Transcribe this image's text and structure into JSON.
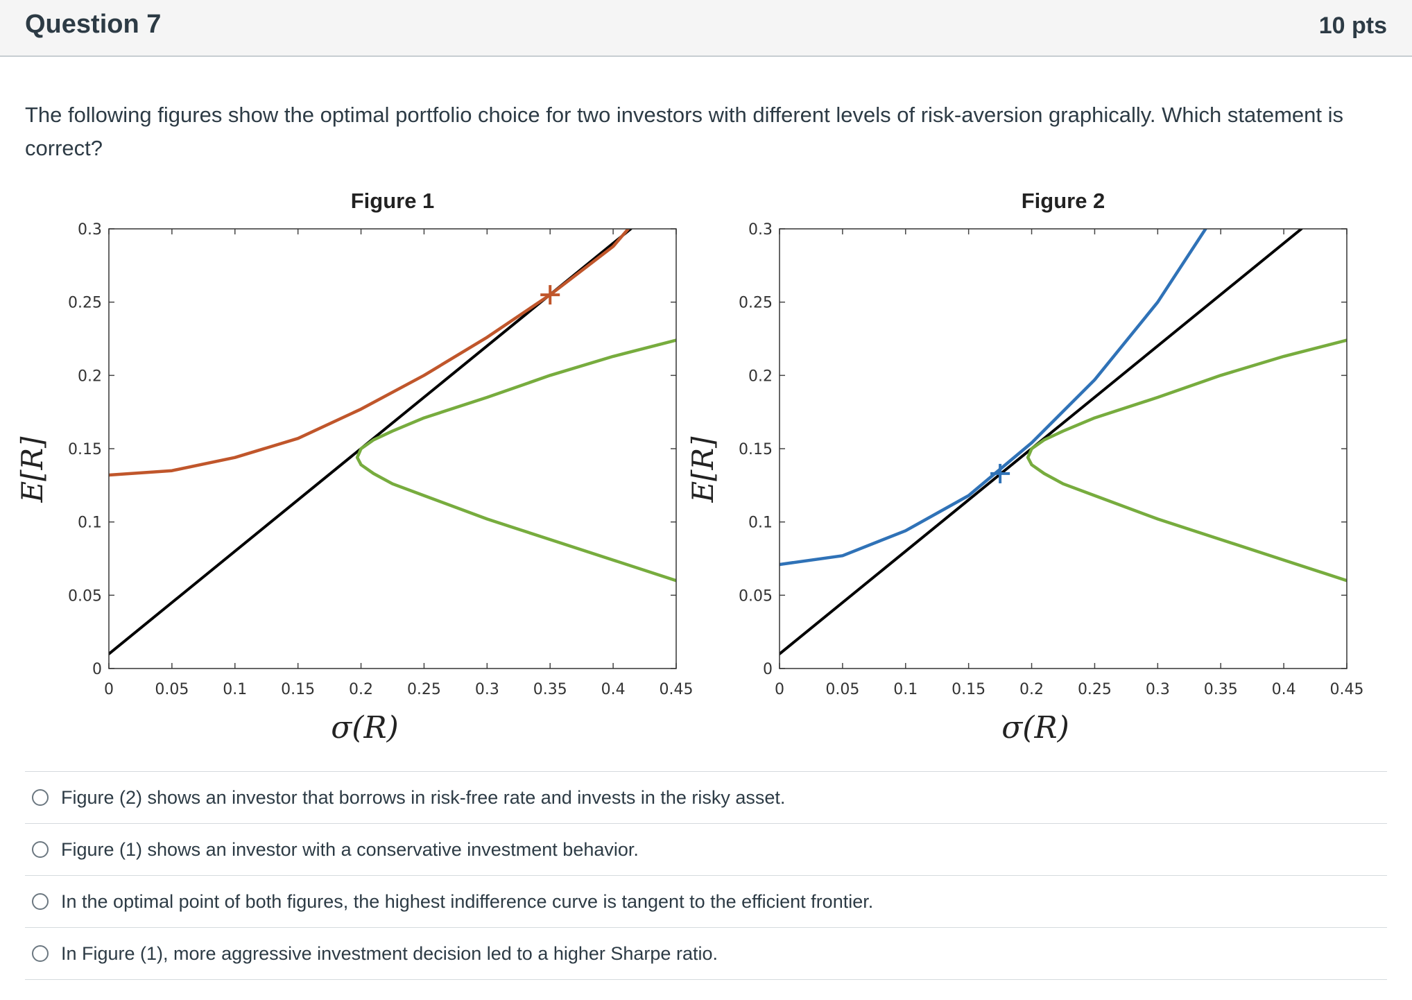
{
  "question": {
    "title": "Question 7",
    "points": "10 pts",
    "text": "The following figures show the optimal portfolio choice for two investors with different levels of risk-aversion graphically. Which statement is correct?"
  },
  "chart_data": [
    {
      "type": "line",
      "title": "Figure 1",
      "xlabel": "σ(R)",
      "ylabel": "E[R]",
      "xlim": [
        0,
        0.45
      ],
      "ylim": [
        0,
        0.3
      ],
      "xticks": [
        "0",
        "0.05",
        "0.1",
        "0.15",
        "0.2",
        "0.25",
        "0.3",
        "0.35",
        "0.4",
        "0.45"
      ],
      "yticks": [
        "0",
        "0.05",
        "0.1",
        "0.15",
        "0.2",
        "0.25",
        "0.3"
      ],
      "series": [
        {
          "color": "#000000",
          "x": [
            0,
            0.414
          ],
          "y": [
            0.01,
            0.3
          ]
        },
        {
          "color": "#c0562b",
          "x": [
            0,
            0.05,
            0.1,
            0.15,
            0.2,
            0.25,
            0.3,
            0.35,
            0.4,
            0.412
          ],
          "y": [
            0.132,
            0.135,
            0.144,
            0.157,
            0.177,
            0.2,
            0.226,
            0.255,
            0.288,
            0.3
          ]
        },
        {
          "color": "#77ac3e",
          "x": [
            0.45,
            0.4,
            0.35,
            0.3,
            0.25,
            0.225,
            0.21,
            0.2,
            0.197,
            0.2,
            0.21,
            0.225,
            0.25,
            0.3,
            0.35,
            0.4,
            0.45
          ],
          "y": [
            0.06,
            0.074,
            0.088,
            0.102,
            0.118,
            0.126,
            0.133,
            0.139,
            0.144,
            0.15,
            0.156,
            0.162,
            0.171,
            0.185,
            0.2,
            0.213,
            0.224
          ]
        }
      ],
      "marker": {
        "color": "#c0562b",
        "x": 0.35,
        "y": 0.255
      }
    },
    {
      "type": "line",
      "title": "Figure 2",
      "xlabel": "σ(R)",
      "ylabel": "E[R]",
      "xlim": [
        0,
        0.45
      ],
      "ylim": [
        0,
        0.3
      ],
      "xticks": [
        "0",
        "0.05",
        "0.1",
        "0.15",
        "0.2",
        "0.25",
        "0.3",
        "0.35",
        "0.4",
        "0.45"
      ],
      "yticks": [
        "0",
        "0.05",
        "0.1",
        "0.15",
        "0.2",
        "0.25",
        "0.3"
      ],
      "series": [
        {
          "color": "#000000",
          "x": [
            0,
            0.414
          ],
          "y": [
            0.01,
            0.3
          ]
        },
        {
          "color": "#2f72b7",
          "x": [
            0,
            0.05,
            0.1,
            0.15,
            0.2,
            0.25,
            0.3,
            0.338
          ],
          "y": [
            0.071,
            0.077,
            0.094,
            0.118,
            0.154,
            0.197,
            0.25,
            0.3
          ]
        },
        {
          "color": "#77ac3e",
          "x": [
            0.45,
            0.4,
            0.35,
            0.3,
            0.25,
            0.225,
            0.21,
            0.2,
            0.197,
            0.2,
            0.21,
            0.225,
            0.25,
            0.3,
            0.35,
            0.4,
            0.45
          ],
          "y": [
            0.06,
            0.074,
            0.088,
            0.102,
            0.118,
            0.126,
            0.133,
            0.139,
            0.144,
            0.15,
            0.156,
            0.162,
            0.171,
            0.185,
            0.2,
            0.213,
            0.224
          ]
        }
      ],
      "marker": {
        "color": "#2f72b7",
        "x": 0.175,
        "y": 0.133
      }
    }
  ],
  "answers": [
    {
      "label": "Figure (2) shows an investor that borrows in risk-free rate and invests in the risky asset."
    },
    {
      "label": "Figure (1) shows an investor with a conservative investment behavior."
    },
    {
      "label": "In the optimal point of both figures, the highest indifference curve is tangent to the efficient frontier."
    },
    {
      "label": "In Figure (1), more aggressive investment decision led to a higher Sharpe ratio."
    }
  ]
}
